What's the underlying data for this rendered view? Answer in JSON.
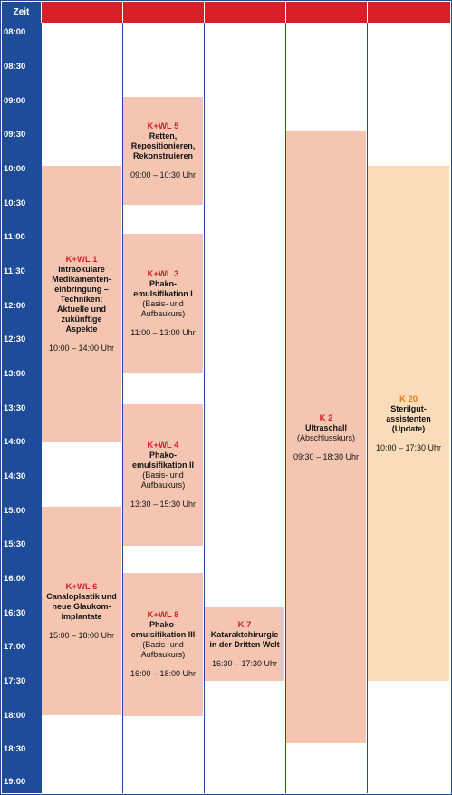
{
  "header": {
    "time_label": "Zeit"
  },
  "time_labels": [
    "08:00",
    "08:30",
    "09:00",
    "09:30",
    "10:00",
    "10:30",
    "11:00",
    "11:30",
    "12:00",
    "12:30",
    "13:00",
    "13:30",
    "14:00",
    "14:30",
    "15:00",
    "15:30",
    "16:00",
    "16:30",
    "17:00",
    "17:30",
    "18:00",
    "18:30",
    "19:00"
  ],
  "sessions": [
    {
      "code": "K+WL 1",
      "title": "Intraokulare Medikamenten-einbringung – Techniken: Aktuelle und zukünftige Aspekte",
      "sub": "",
      "time": "10:00 – 14:00 Uhr"
    },
    {
      "code": "K+WL 5",
      "title": "Retten, Repositionieren, Rekonstruieren",
      "sub": "",
      "time": "09:00 – 10:30 Uhr"
    },
    {
      "code": "K+WL 3",
      "title": "Phako-emulsifikation I",
      "sub": "(Basis- und Aufbaukurs)",
      "time": "11:00 – 13:00 Uhr"
    },
    {
      "code": "K+WL 4",
      "title": "Phako-emulsifikation II",
      "sub": "(Basis- und Aufbaukurs)",
      "time": "13:30 – 15:30 Uhr"
    },
    {
      "code": "K+WL 6",
      "title": "Canaloplastik und neue Glaukom-implantate",
      "sub": "",
      "time": "15:00 – 18:00 Uhr"
    },
    {
      "code": "K+WL 8",
      "title": "Phako-emulsifikation III",
      "sub": "(Basis- und Aufbaukurs)",
      "time": "16:00 – 18:00 Uhr"
    },
    {
      "code": "K 7",
      "title": "Kataraktchirurgie in der Dritten Welt",
      "sub": "",
      "time": "16:30 – 17:30 Uhr"
    },
    {
      "code": "K 2",
      "title": "Ultraschall",
      "sub": "(Abschlusskurs)",
      "time": "09:30 – 18:30 Uhr"
    },
    {
      "code": "K 20",
      "title": "Sterilgut-assistenten (Update)",
      "sub": "",
      "time": "10:00 – 17:30 Uhr"
    }
  ],
  "colors": {
    "header_red": "#d71f2a",
    "time_blue": "#1f4c9a",
    "session_salmon": "#f4c6b2",
    "session_beige": "#fbdcb9",
    "code_red": "#d71f2a",
    "code_orange": "#e37a1e"
  }
}
